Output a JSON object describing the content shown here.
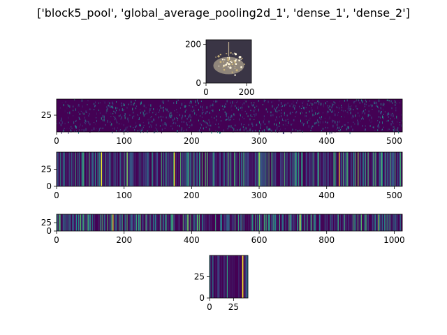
{
  "figure": {
    "title": "['block5_pool', 'global_average_pooling2d_1', 'dense_1', 'dense_2']"
  },
  "chart_data": [
    {
      "type": "heatmap",
      "content": "image",
      "xticks": [
        "0",
        "200"
      ],
      "yticks": [
        "0",
        "200"
      ],
      "xlim": [
        0,
        224
      ],
      "ylim": [
        224,
        0
      ]
    },
    {
      "type": "heatmap",
      "colormap": "viridis",
      "xticks": [
        "0",
        "100",
        "200",
        "300",
        "400",
        "500"
      ],
      "yticks": [
        "25"
      ],
      "xlim": [
        0,
        512
      ],
      "ylim": [
        49,
        0
      ]
    },
    {
      "type": "heatmap",
      "colormap": "viridis",
      "xticks": [
        "0",
        "100",
        "200",
        "300",
        "400",
        "500"
      ],
      "yticks": [
        "0",
        "25"
      ],
      "xlim": [
        0,
        512
      ],
      "ylim": [
        50,
        0
      ],
      "bright_columns": [
        66,
        104,
        174,
        300,
        418,
        446
      ]
    },
    {
      "type": "heatmap",
      "colormap": "viridis",
      "xticks": [
        "0",
        "200",
        "400",
        "600",
        "800",
        "1000"
      ],
      "yticks": [
        "0",
        "25"
      ],
      "xlim": [
        0,
        1024
      ],
      "ylim": [
        50,
        0
      ],
      "bright_columns": [
        166,
        388,
        720,
        952
      ]
    },
    {
      "type": "heatmap",
      "colormap": "viridis",
      "xticks": [
        "0",
        "25"
      ],
      "yticks": [
        "0",
        "25"
      ],
      "xlim": [
        0,
        40
      ],
      "ylim": [
        50,
        0
      ],
      "bright_columns": [
        34
      ]
    }
  ]
}
